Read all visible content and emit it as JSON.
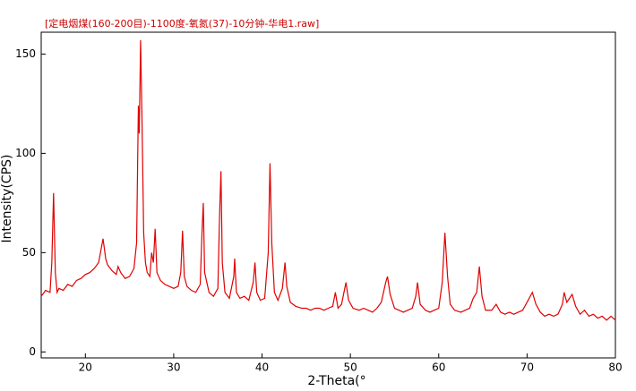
{
  "chart_data": {
    "type": "line",
    "title": "[定电烟煤(160-200目)-1100度-氧氮(37)-10分钟-华电1.raw]",
    "x_label": "2-Theta(°",
    "y_label": "Intensity(CPS)",
    "xlim": [
      15,
      80
    ],
    "ylim": [
      -3,
      161
    ],
    "xticks": [
      20,
      30,
      40,
      50,
      60,
      70,
      80
    ],
    "yticks": [
      0,
      50,
      100,
      150
    ],
    "grid": false,
    "series": [
      {
        "color": "#e00000",
        "x": [
          15,
          15.5,
          16,
          16.2,
          16.4,
          16.6,
          16.8,
          17,
          17.5,
          18,
          18.5,
          19,
          19.5,
          20,
          20.5,
          21,
          21.5,
          22,
          22.3,
          22.5,
          23,
          23.5,
          23.7,
          24,
          24.5,
          25,
          25.5,
          25.8,
          26,
          26.1,
          26.25,
          26.4,
          26.6,
          26.8,
          27,
          27.3,
          27.5,
          27.7,
          27.9,
          28.1,
          28.5,
          29,
          29.5,
          30,
          30.5,
          30.8,
          31,
          31.2,
          31.5,
          32,
          32.5,
          33,
          33.2,
          33.35,
          33.5,
          34,
          34.5,
          35,
          35.2,
          35.35,
          35.5,
          35.8,
          36.3,
          36.8,
          36.9,
          37.1,
          37.5,
          38,
          38.5,
          39,
          39.2,
          39.4,
          39.8,
          40.3,
          40.7,
          40.9,
          41.1,
          41.4,
          41.8,
          42.3,
          42.6,
          42.8,
          43.2,
          43.8,
          44.5,
          45,
          45.5,
          46,
          46.5,
          47,
          47.5,
          48,
          48.3,
          48.6,
          49,
          49.5,
          49.8,
          50.3,
          51,
          51.5,
          52,
          52.5,
          53,
          53.5,
          54,
          54.2,
          54.5,
          55,
          55.5,
          56,
          56.5,
          57,
          57.4,
          57.6,
          57.9,
          58.5,
          59,
          59.5,
          60,
          60.4,
          60.7,
          61,
          61.3,
          61.8,
          62.5,
          63,
          63.5,
          63.9,
          64.3,
          64.6,
          64.9,
          65.3,
          66,
          66.5,
          67,
          67.5,
          68,
          68.5,
          69,
          69.5,
          70,
          70.6,
          71,
          71.5,
          72,
          72.5,
          73,
          73.5,
          74,
          74.2,
          74.5,
          75.1,
          75.5,
          76,
          76.5,
          77,
          77.5,
          78,
          78.5,
          79,
          79.5,
          80
        ],
        "values": [
          28,
          31,
          30,
          45,
          80,
          40,
          30,
          32,
          31,
          34,
          33,
          36,
          37,
          39,
          40,
          42,
          45,
          57,
          47,
          44,
          41,
          39,
          43,
          40,
          37,
          38,
          42,
          55,
          124,
          110,
          157,
          120,
          60,
          45,
          40,
          38,
          50,
          45,
          62,
          40,
          36,
          34,
          33,
          32,
          33,
          40,
          61,
          38,
          33,
          31,
          30,
          34,
          60,
          75,
          40,
          30,
          28,
          32,
          70,
          91,
          45,
          30,
          27,
          38,
          47,
          30,
          27,
          28,
          26,
          35,
          45,
          30,
          26,
          27,
          50,
          95,
          55,
          30,
          26,
          32,
          45,
          33,
          25,
          23,
          22,
          22,
          21,
          22,
          22,
          21,
          22,
          23,
          30,
          22,
          24,
          35,
          26,
          22,
          21,
          22,
          21,
          20,
          22,
          25,
          35,
          38,
          29,
          22,
          21,
          20,
          21,
          22,
          28,
          35,
          24,
          21,
          20,
          21,
          22,
          35,
          60,
          38,
          24,
          21,
          20,
          21,
          22,
          27,
          30,
          43,
          28,
          21,
          21,
          24,
          20,
          19,
          20,
          19,
          20,
          21,
          25,
          30,
          24,
          20,
          18,
          19,
          18,
          19,
          24,
          30,
          25,
          29,
          23,
          19,
          21,
          18,
          19,
          17,
          18,
          16,
          18,
          16
        ]
      }
    ]
  }
}
